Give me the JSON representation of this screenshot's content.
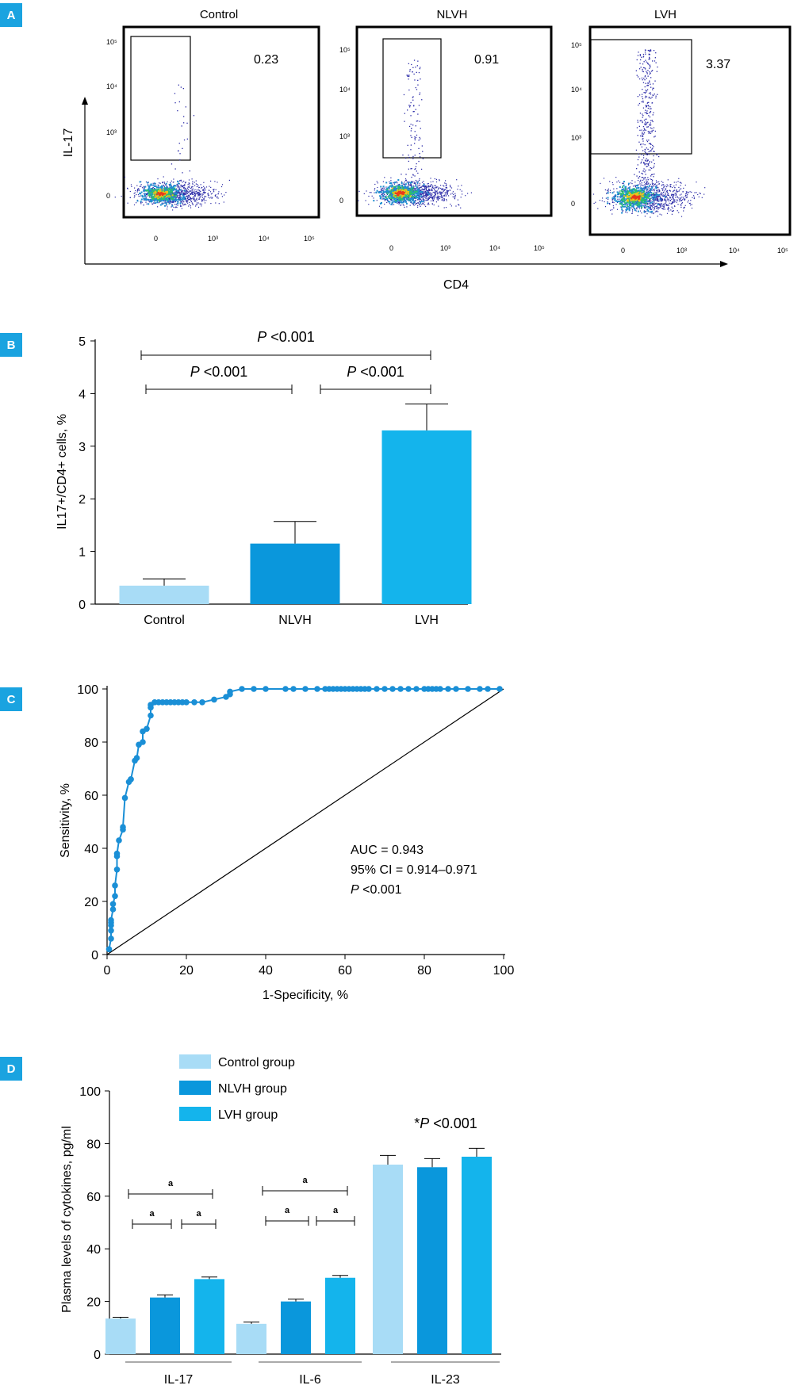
{
  "colors": {
    "badge": "#1aa3e0",
    "control": "#a8dcf6",
    "nlvh": "#0a97dc",
    "lvh": "#14b4ec",
    "roc": "#1a8fd6",
    "axis": "#000000"
  },
  "panels": {
    "A": {
      "badge": "A",
      "y_axis_label": "IL-17",
      "x_axis_label": "CD4",
      "plots": [
        {
          "title": "Control",
          "gate_value": "0.23",
          "y_ticks": [
            "10⁵",
            "10⁴",
            "10³",
            "0"
          ],
          "x_ticks": [
            "0",
            "10³",
            "10⁴",
            "10⁵"
          ]
        },
        {
          "title": "NLVH",
          "gate_value": "0.91",
          "y_ticks": [
            "10⁵",
            "10⁴",
            "10³",
            "0"
          ],
          "x_ticks": [
            "0",
            "10³",
            "10⁴",
            "10⁵"
          ]
        },
        {
          "title": "LVH",
          "gate_value": "3.37",
          "y_ticks": [
            "10⁵",
            "10⁴",
            "10³",
            "0"
          ],
          "x_ticks": [
            "0",
            "10³",
            "10⁴",
            "10⁵"
          ]
        }
      ]
    },
    "B": {
      "badge": "B",
      "p_label": "P",
      "p_rest": " <0.001"
    },
    "C": {
      "badge": "C",
      "stats": [
        "AUC = 0.943",
        "95% CI = 0.914–0.971"
      ],
      "p_label": "P",
      "p_rest": " <0.001"
    },
    "D": {
      "badge": "D",
      "sig_letter": "a",
      "star_prefix": "*",
      "p_label": "P",
      "p_rest": " <0.001"
    }
  },
  "chart_data": [
    {
      "type": "bar",
      "ylabel": "IL17+/CD4+ cells, %",
      "ylim": [
        0,
        5
      ],
      "y_ticks": [
        0,
        1,
        2,
        3,
        4,
        5
      ],
      "categories": [
        "Control",
        "NLVH",
        "LVH"
      ],
      "values": [
        0.35,
        1.15,
        3.3
      ],
      "errors": [
        0.13,
        0.42,
        0.5
      ],
      "comparisons": [
        {
          "from": "Control",
          "to": "LVH",
          "label": "P <0.001"
        },
        {
          "from": "Control",
          "to": "NLVH",
          "label": "P <0.001"
        },
        {
          "from": "NLVH",
          "to": "LVH",
          "label": "P <0.001"
        }
      ]
    },
    {
      "type": "line",
      "xlabel": "1-Specificity, %",
      "ylabel": "Sensitivity, %",
      "xlim": [
        0,
        100
      ],
      "ylim": [
        0,
        100
      ],
      "x_ticks": [
        0,
        20,
        40,
        60,
        80,
        100
      ],
      "y_ticks": [
        0,
        20,
        40,
        60,
        80,
        100
      ],
      "reference_line": [
        [
          0,
          0
        ],
        [
          100,
          100
        ]
      ],
      "series": [
        {
          "x": [
            0.5,
            1,
            1,
            1,
            1,
            1,
            1.5,
            1.5,
            2,
            2,
            2.5,
            2.5,
            2.5,
            3,
            4,
            4,
            4.5,
            5.5,
            6,
            6,
            7,
            7.5,
            8,
            9,
            9,
            10,
            11,
            11,
            11,
            12,
            13,
            14,
            15,
            16,
            17,
            18,
            19,
            20,
            22,
            24,
            27,
            30,
            31,
            31,
            34,
            37,
            40,
            45,
            47,
            50,
            53,
            55,
            56,
            57,
            58,
            59,
            60,
            61,
            62,
            63,
            64,
            65,
            66,
            68,
            70,
            72,
            74,
            76,
            78,
            80,
            81,
            82,
            83,
            84,
            86,
            88,
            91,
            94,
            96,
            99
          ],
          "y": [
            2,
            6,
            9,
            11,
            12,
            13,
            17,
            19,
            22,
            26,
            32,
            37,
            38,
            43,
            47,
            48,
            59,
            65,
            66,
            66,
            73,
            74,
            79,
            80,
            84,
            85,
            90,
            93,
            94,
            95,
            95,
            95,
            95,
            95,
            95,
            95,
            95,
            95,
            95,
            95,
            96,
            97,
            98,
            99,
            100,
            100,
            100,
            100,
            100,
            100,
            100,
            100,
            100,
            100,
            100,
            100,
            100,
            100,
            100,
            100,
            100,
            100,
            100,
            100,
            100,
            100,
            100,
            100,
            100,
            100,
            100,
            100,
            100,
            100,
            100,
            100,
            100,
            100,
            100,
            100
          ]
        }
      ],
      "annotations": [
        "AUC = 0.943",
        "95% CI = 0.914–0.971",
        "P <0.001"
      ]
    },
    {
      "type": "bar",
      "ylabel": "Plasma levels of cytokines, pg/ml",
      "ylim": [
        0,
        100
      ],
      "y_ticks": [
        0,
        20,
        40,
        60,
        80,
        100
      ],
      "categories": [
        "IL-17",
        "IL-6",
        "IL-23"
      ],
      "legend_position": "top-left",
      "series": [
        {
          "name": "Control group",
          "values": [
            13.5,
            11.5,
            72
          ],
          "errors": [
            0.5,
            0.7,
            3.5
          ]
        },
        {
          "name": "NLVH group",
          "values": [
            21.5,
            20,
            71
          ],
          "errors": [
            1.0,
            0.9,
            3.3
          ]
        },
        {
          "name": "LVH group",
          "values": [
            28.5,
            29,
            75
          ],
          "errors": [
            0.8,
            0.9,
            3.2
          ]
        }
      ],
      "annotations": [
        "a",
        "*P <0.001"
      ]
    }
  ]
}
